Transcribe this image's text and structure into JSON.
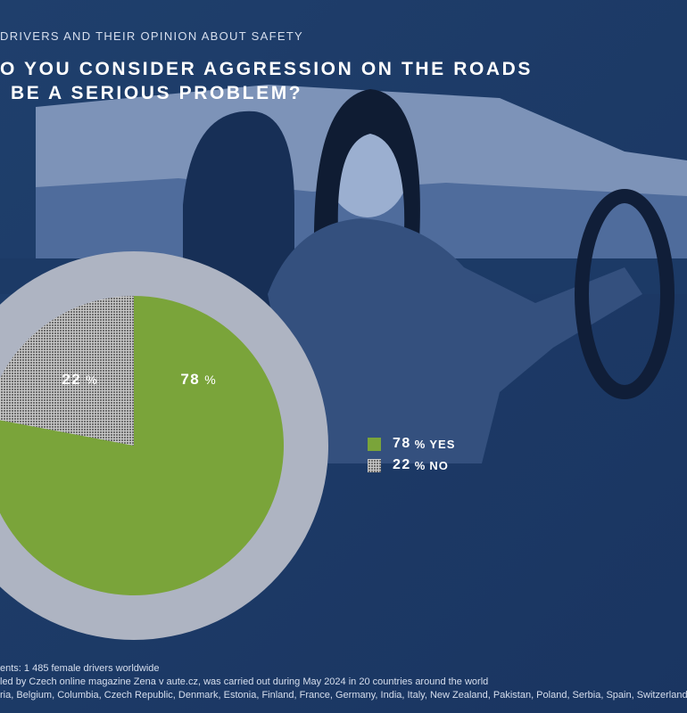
{
  "header": {
    "subtitle": "DRIVERS AND THEIR OPINION ABOUT SAFETY",
    "headline_line1": "O YOU CONSIDER AGGRESSION ON THE ROADS",
    "headline_line2": "BE A SERIOUS PROBLEM?"
  },
  "chart_data": {
    "type": "pie",
    "categories": [
      "YES",
      "NO"
    ],
    "values": [
      78,
      22
    ],
    "value_labels": [
      "78",
      "22"
    ],
    "unit": "%",
    "legend_position": "right",
    "colors": {
      "YES": "#7aa43a",
      "NO": "#6e6e6e",
      "ring": "#aeb4c2"
    }
  },
  "legend": [
    {
      "value": "78",
      "unit": "%",
      "label": "YES"
    },
    {
      "value": "22",
      "unit": "%",
      "label": "NO"
    }
  ],
  "footer": {
    "line1": "ents: 1 485 female drivers worldwide",
    "line2": "led by Czech online magazine Zena v aute.cz, was carried out during May 2024 in 20 countries around the world",
    "line3": "ria, Belgium, Columbia, Czech Republic, Denmark, Estonia, Finland, France, Germany, India, Italy, New Zealand, Pakistan, Poland, Serbia, Spain, Switzerland, U"
  }
}
